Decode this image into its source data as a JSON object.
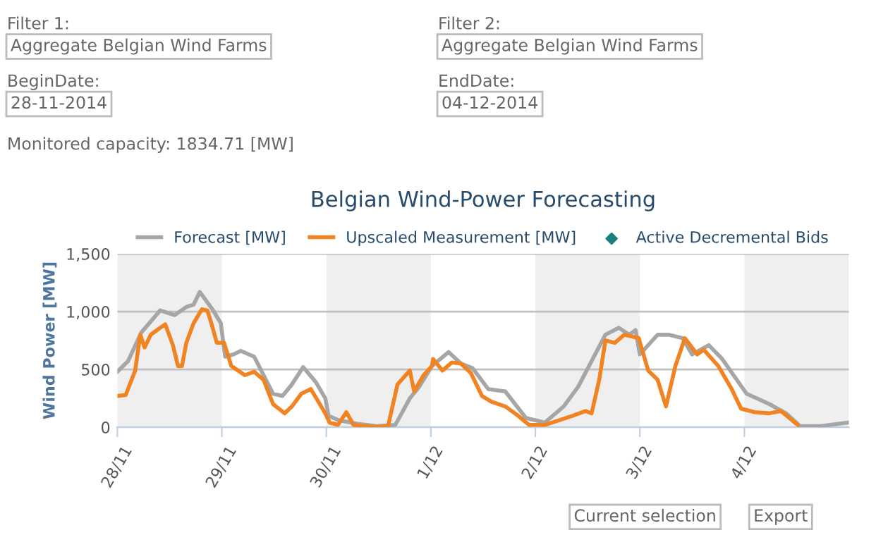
{
  "chart_data": {
    "type": "line",
    "title": "Belgian Wind-Power Forecasting",
    "ylabel": "Wind Power [MW]",
    "annotations": [
      "Filter 1:",
      "Aggregate Belgian Wind Farms",
      "Filter 2:",
      "Aggregate Belgian Wind Farms",
      "BeginDate:",
      "28-11-2014",
      "EndDate:",
      "04-12-2014",
      "Monitored capacity: 1834.71 [MW]",
      "Current selection",
      "Export"
    ],
    "series": [
      {
        "name": "Forecast [MW]",
        "color": "#a6a6a6",
        "x": [
          "2014-11-28T00:00",
          "2014-11-28T02:25",
          "2014-11-28T05:30",
          "2014-11-28T09:50",
          "2014-11-28T13:10",
          "2014-11-28T15:50",
          "2014-11-28T17:30",
          "2014-11-28T18:55",
          "2014-11-28T21:50",
          "2014-11-28T23:45",
          "2014-11-29T00:45",
          "2014-11-29T02:40",
          "2014-11-29T04:20",
          "2014-11-29T07:25",
          "2014-11-29T09:35",
          "2014-11-29T11:45",
          "2014-11-29T13:55",
          "2014-11-29T16:05",
          "2014-11-29T18:40",
          "2014-11-29T21:35",
          "2014-11-29T23:45",
          "2014-11-30T00:30",
          "2014-11-30T02:50",
          "2014-11-30T07:10",
          "2014-11-30T11:30",
          "2014-11-30T15:50",
          "2014-11-30T19:10",
          "2014-11-30T21:20",
          "2014-12-01T00:15",
          "2014-12-01T04:05",
          "2014-12-01T06:55",
          "2014-12-01T09:35",
          "2014-12-01T13:10",
          "2014-12-01T17:05",
          "2014-12-01T21:50",
          "2014-12-02T02:10",
          "2014-12-02T06:30",
          "2014-12-02T09:50",
          "2014-12-02T16:05",
          "2014-12-02T19:10",
          "2014-12-02T21:35",
          "2014-12-02T23:00",
          "2014-12-03T00:00",
          "2014-12-03T04:05",
          "2014-12-03T06:40",
          "2014-12-03T09:50",
          "2014-12-03T12:00",
          "2014-12-03T15:50",
          "2014-12-03T18:55",
          "2014-12-04T00:30",
          "2014-12-04T05:45",
          "2014-12-04T09:35",
          "2014-12-04T12:45",
          "2014-12-04T17:30",
          "2014-12-04T23:45"
        ],
        "values": [
          480,
          570,
          820,
          1010,
          970,
          1040,
          1060,
          1170,
          1020,
          900,
          610,
          630,
          660,
          610,
          450,
          290,
          270,
          370,
          520,
          390,
          250,
          100,
          60,
          30,
          10,
          20,
          250,
          350,
          530,
          650,
          550,
          510,
          330,
          310,
          80,
          40,
          180,
          350,
          800,
          860,
          800,
          840,
          630,
          800,
          800,
          770,
          630,
          710,
          590,
          290,
          200,
          120,
          10,
          10,
          40
        ]
      },
      {
        "name": "Upscaled Measurement [MW]",
        "color": "#f28322",
        "x": [
          "2014-11-28T00:00",
          "2014-11-28T01:55",
          "2014-11-28T04:05",
          "2014-11-28T05:15",
          "2014-11-28T06:15",
          "2014-11-28T07:40",
          "2014-11-28T09:50",
          "2014-11-28T11:00",
          "2014-11-28T12:45",
          "2014-11-28T13:55",
          "2014-11-28T14:50",
          "2014-11-28T15:50",
          "2014-11-28T17:30",
          "2014-11-28T19:25",
          "2014-11-28T20:40",
          "2014-11-28T21:35",
          "2014-11-28T22:50",
          "2014-11-29T00:30",
          "2014-11-29T02:10",
          "2014-11-29T05:15",
          "2014-11-29T07:25",
          "2014-11-29T09:35",
          "2014-11-29T11:45",
          "2014-11-29T14:25",
          "2014-11-29T16:05",
          "2014-11-29T18:15",
          "2014-11-29T20:25",
          "2014-11-29T23:45",
          "2014-11-30T00:45",
          "2014-11-30T02:40",
          "2014-11-30T04:35",
          "2014-11-30T06:15",
          "2014-11-30T11:30",
          "2014-11-30T14:10",
          "2014-11-30T16:20",
          "2014-11-30T19:10",
          "2014-11-30T20:10",
          "2014-11-30T22:20",
          "2014-12-01T00:15",
          "2014-12-01T00:30",
          "2014-12-01T02:40",
          "2014-12-01T04:50",
          "2014-12-01T06:55",
          "2014-12-01T09:10",
          "2014-12-01T11:45",
          "2014-12-01T13:55",
          "2014-12-01T17:05",
          "2014-12-01T19:40",
          "2014-12-01T22:35",
          "2014-12-02T02:10",
          "2014-12-02T05:30",
          "2014-12-02T08:40",
          "2014-12-02T11:30",
          "2014-12-02T12:55",
          "2014-12-02T14:40",
          "2014-12-02T16:05",
          "2014-12-02T18:15",
          "2014-12-02T20:25",
          "2014-12-02T23:45",
          "2014-12-03T01:55",
          "2014-12-03T04:05",
          "2014-12-03T06:00",
          "2014-12-03T08:10",
          "2014-12-03T10:20",
          "2014-12-03T13:10",
          "2014-12-03T14:40",
          "2014-12-03T18:00",
          "2014-12-03T21:05",
          "2014-12-03T23:15",
          "2014-12-04T02:25",
          "2014-12-04T05:45",
          "2014-12-04T08:25",
          "2014-12-04T12:15"
        ],
        "values": [
          270,
          280,
          490,
          800,
          690,
          800,
          860,
          890,
          710,
          530,
          530,
          730,
          900,
          1020,
          1010,
          900,
          730,
          730,
          530,
          450,
          480,
          410,
          200,
          120,
          180,
          290,
          330,
          120,
          40,
          20,
          130,
          20,
          0,
          10,
          370,
          490,
          310,
          450,
          530,
          590,
          490,
          560,
          550,
          470,
          270,
          220,
          180,
          110,
          20,
          20,
          60,
          100,
          140,
          120,
          410,
          750,
          730,
          800,
          770,
          490,
          410,
          180,
          530,
          770,
          630,
          670,
          530,
          330,
          160,
          130,
          120,
          140,
          20
        ]
      },
      {
        "name": "Active Decremental Bids",
        "type": "scatter",
        "marker": "diamond",
        "color": "#1a7f7f"
      }
    ],
    "xlim": [
      "2014-11-28",
      "2014-12-05"
    ],
    "xticks": [
      {
        "value": "2014-11-28",
        "label": "28/11"
      },
      {
        "value": "2014-11-29",
        "label": "29/11"
      },
      {
        "value": "2014-11-30",
        "label": "30/11"
      },
      {
        "value": "2014-12-01",
        "label": "1/12"
      },
      {
        "value": "2014-12-02",
        "label": "2/12"
      },
      {
        "value": "2014-12-03",
        "label": "3/12"
      },
      {
        "value": "2014-12-04",
        "label": "4/12"
      }
    ],
    "ylim": [
      0,
      1500
    ],
    "yticks": [
      {
        "value": 0,
        "label": "0"
      },
      {
        "value": 500,
        "label": "500"
      },
      {
        "value": 1000,
        "label": "1,000"
      },
      {
        "value": 1500,
        "label": "1,500"
      }
    ],
    "bands": [
      {
        "axis": "x",
        "from": "2014-11-28",
        "to": "2014-11-29",
        "color": "#efefef"
      },
      {
        "axis": "x",
        "from": "2014-11-30",
        "to": "2014-12-01",
        "color": "#efefef"
      },
      {
        "axis": "x",
        "from": "2014-12-02",
        "to": "2014-12-03",
        "color": "#efefef"
      },
      {
        "axis": "x",
        "from": "2014-12-04",
        "to": "2014-12-05",
        "color": "#efefef"
      }
    ],
    "grid": "y",
    "legend": "top",
    "marker": "none",
    "line_style": "solid"
  }
}
